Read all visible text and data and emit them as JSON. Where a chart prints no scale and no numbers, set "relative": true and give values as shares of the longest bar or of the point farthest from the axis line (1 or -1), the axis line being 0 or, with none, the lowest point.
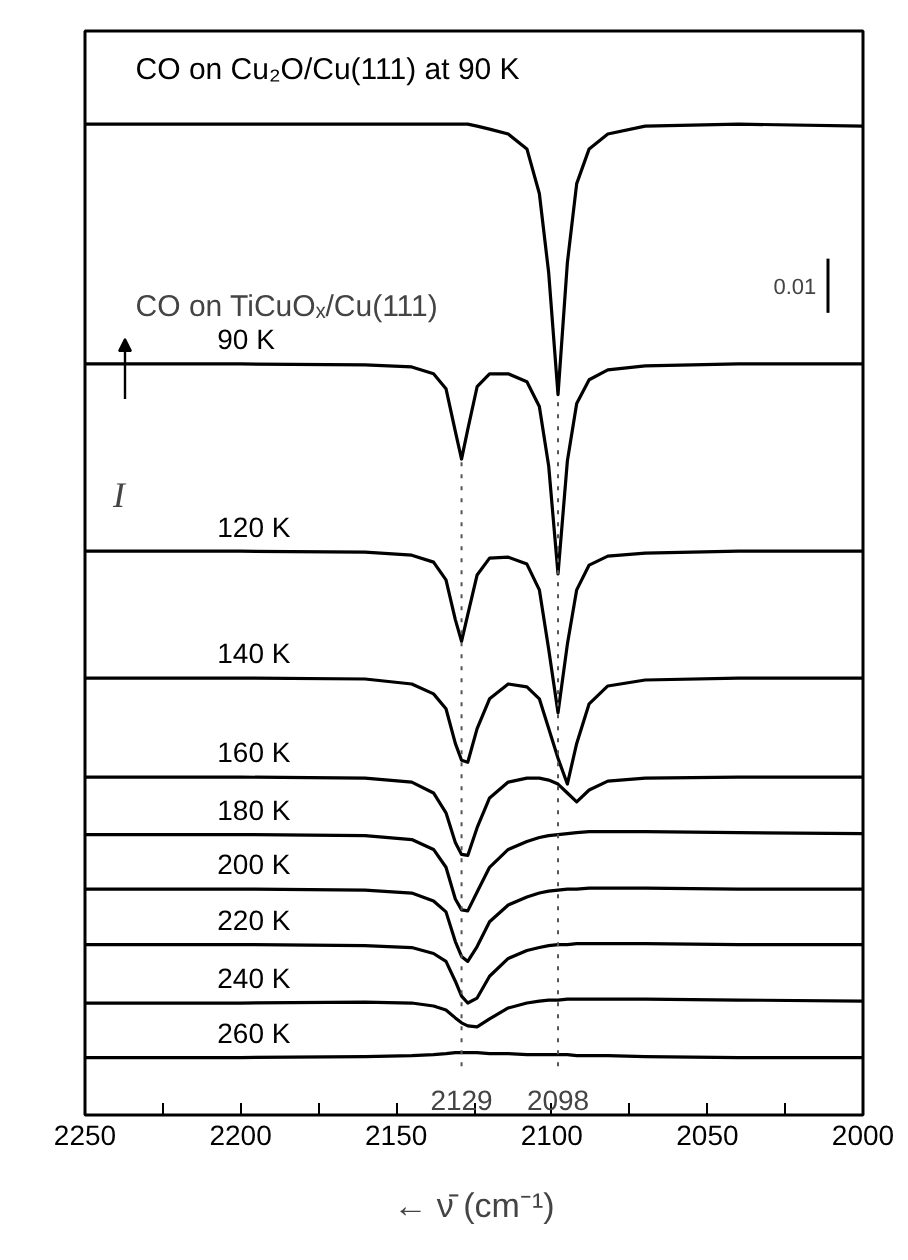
{
  "chart_data": {
    "type": "line",
    "relative": true,
    "xlabel": "← ν̄ (cm⁻¹)",
    "ylabel": "I",
    "xlim": [
      2250,
      2000
    ],
    "xticks": [
      2250,
      {
        "value": 2225,
        "label": null
      },
      2200,
      {
        "value": 2175,
        "label": null
      },
      2150,
      {
        "value": 2125,
        "label": null
      },
      2100,
      {
        "value": 2075,
        "label": null
      },
      2050,
      {
        "value": 2025,
        "label": null
      },
      2000
    ],
    "x": [
      2250,
      2200,
      2160,
      2145,
      2138,
      2134,
      2131,
      2129,
      2127,
      2124,
      2120,
      2114,
      2108,
      2104,
      2101,
      2098,
      2095,
      2092,
      2088,
      2082,
      2070,
      2040,
      2000
    ],
    "series": [
      {
        "name": "CO on Cu₂O/Cu(111) at 90 K",
        "color": "#000000",
        "values": [
          1.0,
          1.0,
          1.0,
          1.0,
          1.0,
          1.0,
          1.0,
          1.0,
          1.0,
          0.998,
          0.995,
          0.99,
          0.975,
          0.93,
          0.85,
          0.727,
          0.86,
          0.94,
          0.975,
          0.99,
          0.998,
          1.0,
          0.998
        ]
      },
      {
        "name": "90 K",
        "color": "#000000",
        "values": [
          0.758,
          0.758,
          0.757,
          0.755,
          0.748,
          0.733,
          0.69,
          0.662,
          0.692,
          0.735,
          0.748,
          0.748,
          0.74,
          0.715,
          0.655,
          0.546,
          0.66,
          0.718,
          0.742,
          0.752,
          0.756,
          0.758,
          0.758
        ]
      },
      {
        "name": "120 K",
        "color": "#000000",
        "values": [
          0.569,
          0.569,
          0.568,
          0.565,
          0.558,
          0.54,
          0.5,
          0.478,
          0.505,
          0.545,
          0.562,
          0.563,
          0.556,
          0.53,
          0.47,
          0.406,
          0.475,
          0.53,
          0.555,
          0.564,
          0.567,
          0.569,
          0.569
        ]
      },
      {
        "name": "140 K",
        "color": "#000000",
        "values": [
          0.441,
          0.441,
          0.44,
          0.435,
          0.425,
          0.41,
          0.375,
          0.358,
          0.356,
          0.39,
          0.42,
          0.435,
          0.432,
          0.42,
          0.39,
          0.36,
          0.334,
          0.375,
          0.415,
          0.433,
          0.439,
          0.441,
          0.441
        ]
      },
      {
        "name": "160 K",
        "color": "#000000",
        "values": [
          0.341,
          0.341,
          0.34,
          0.336,
          0.325,
          0.305,
          0.275,
          0.263,
          0.262,
          0.29,
          0.32,
          0.336,
          0.34,
          0.34,
          0.338,
          0.334,
          0.325,
          0.316,
          0.328,
          0.337,
          0.34,
          0.341,
          0.341
        ]
      },
      {
        "name": "180 K",
        "color": "#000000",
        "values": [
          0.283,
          0.283,
          0.282,
          0.278,
          0.268,
          0.25,
          0.218,
          0.207,
          0.206,
          0.225,
          0.25,
          0.268,
          0.276,
          0.28,
          0.282,
          0.283,
          0.284,
          0.285,
          0.286,
          0.286,
          0.286,
          0.285,
          0.284
        ]
      },
      {
        "name": "200 K",
        "color": "#000000",
        "values": [
          0.228,
          0.228,
          0.227,
          0.224,
          0.216,
          0.205,
          0.175,
          0.16,
          0.155,
          0.17,
          0.195,
          0.212,
          0.22,
          0.224,
          0.226,
          0.227,
          0.228,
          0.228,
          0.229,
          0.229,
          0.229,
          0.228,
          0.228
        ]
      },
      {
        "name": "220 K",
        "color": "#000000",
        "values": [
          0.172,
          0.172,
          0.171,
          0.169,
          0.163,
          0.155,
          0.135,
          0.12,
          0.113,
          0.118,
          0.14,
          0.158,
          0.166,
          0.169,
          0.171,
          0.172,
          0.172,
          0.173,
          0.173,
          0.173,
          0.173,
          0.172,
          0.172
        ]
      },
      {
        "name": "240 K",
        "color": "#000000",
        "values": [
          0.113,
          0.113,
          0.114,
          0.113,
          0.11,
          0.106,
          0.098,
          0.093,
          0.09,
          0.089,
          0.097,
          0.108,
          0.113,
          0.115,
          0.116,
          0.116,
          0.117,
          0.117,
          0.117,
          0.117,
          0.117,
          0.116,
          0.115
        ]
      },
      {
        "name": "260 K",
        "color": "#000000",
        "values": [
          0.058,
          0.058,
          0.059,
          0.06,
          0.061,
          0.062,
          0.063,
          0.063,
          0.063,
          0.063,
          0.062,
          0.062,
          0.061,
          0.061,
          0.061,
          0.061,
          0.061,
          0.06,
          0.06,
          0.06,
          0.059,
          0.058,
          0.058
        ]
      }
    ],
    "ref_lines": [
      {
        "axis": "x",
        "value": 2129,
        "label": "2129",
        "color": "#555555",
        "line_style": "dotted"
      },
      {
        "axis": "x",
        "value": 2098,
        "label": "2098",
        "color": "#555555",
        "line_style": "dotted"
      }
    ],
    "annotations": [
      "CO on TiCuOₓ/Cu(111)",
      "0.01"
    ],
    "grid": false,
    "marker": "none",
    "line_style": "solid"
  }
}
